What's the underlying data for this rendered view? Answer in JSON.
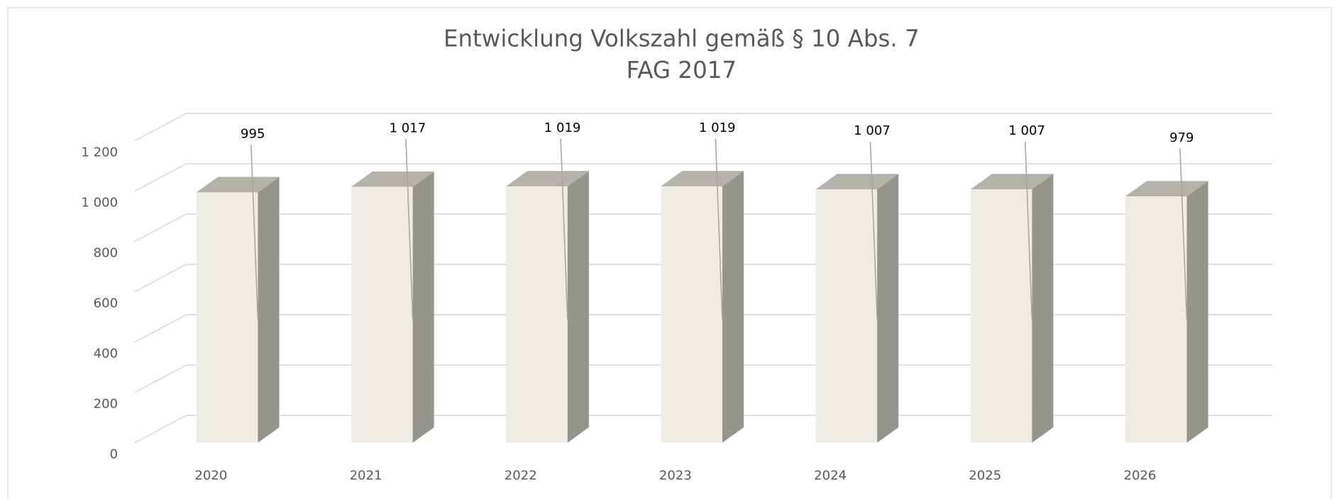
{
  "chart_data": {
    "type": "bar3d",
    "title": "Entwicklung Volkszahl gemäß § 10 Abs. 7",
    "subtitle": "FAG 2017",
    "categories": [
      "2020",
      "2021",
      "2022",
      "2023",
      "2024",
      "2025",
      "2026"
    ],
    "values": [
      995,
      1017,
      1019,
      1019,
      1007,
      1007,
      979
    ],
    "value_labels": [
      "995",
      "1 017",
      "1 019",
      "1 019",
      "1 007",
      "1 007",
      "979"
    ],
    "colors": {
      "front": "#efece2",
      "side": "#96958c",
      "top": "#b5b2a9"
    },
    "ylim": [
      0,
      1200
    ],
    "yticks": [
      0,
      200,
      400,
      600,
      800,
      {
        "value": 1000,
        "label": "1 000"
      },
      {
        "value": 1200,
        "label": "1 200"
      }
    ],
    "grid": true
  }
}
